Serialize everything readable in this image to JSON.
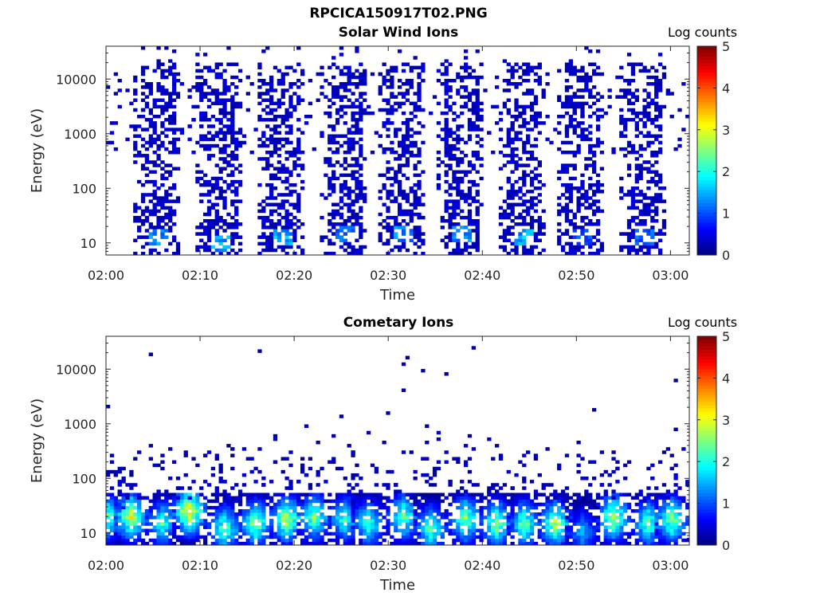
{
  "figure": {
    "filename": "RPCICA150917T02.PNG"
  },
  "chart_data": [
    {
      "type": "heatmap",
      "title": "Solar Wind Ions",
      "xlabel": "Time",
      "ylabel": "Energy (eV)",
      "xlim": [
        "02:00",
        "03:02"
      ],
      "ylim": [
        6,
        40000
      ],
      "yscale": "log",
      "xticks": [
        "02:00",
        "02:10",
        "02:20",
        "02:30",
        "02:40",
        "02:50",
        "03:00"
      ],
      "yticks": [
        "10",
        "100",
        "1000",
        "10000"
      ],
      "colorbar": {
        "label": "Log counts",
        "range": [
          0,
          5
        ],
        "ticks": [
          "0",
          "1",
          "2",
          "3",
          "4",
          "5"
        ],
        "colormap": "jet"
      },
      "background": "#ffffff",
      "bursts": [
        {
          "time_min": 5.7,
          "peak_eV": 12,
          "peak_log_counts": 1.6
        },
        {
          "time_min": 12.2,
          "peak_eV": 10,
          "peak_log_counts": 1.7
        },
        {
          "time_min": 18.8,
          "peak_eV": 12,
          "peak_log_counts": 1.8
        },
        {
          "time_min": 25.3,
          "peak_eV": 15,
          "peak_log_counts": 1.4
        },
        {
          "time_min": 31.7,
          "peak_eV": 15,
          "peak_log_counts": 1.6
        },
        {
          "time_min": 38.0,
          "peak_eV": 15,
          "peak_log_counts": 1.5
        },
        {
          "time_min": 44.5,
          "peak_eV": 12,
          "peak_log_counts": 1.8
        },
        {
          "time_min": 50.8,
          "peak_eV": 12,
          "peak_log_counts": 1.2
        },
        {
          "time_min": 57.3,
          "peak_eV": 12,
          "peak_log_counts": 1.4
        }
      ]
    },
    {
      "type": "heatmap",
      "title": "Cometary Ions",
      "xlabel": "Time",
      "ylabel": "Energy (eV)",
      "xlim": [
        "02:00",
        "03:02"
      ],
      "ylim": [
        6,
        40000
      ],
      "yscale": "log",
      "xticks": [
        "02:00",
        "02:10",
        "02:20",
        "02:30",
        "02:40",
        "02:50",
        "03:00"
      ],
      "yticks": [
        "10",
        "100",
        "1000",
        "10000"
      ],
      "colorbar": {
        "label": "Log counts",
        "range": [
          0,
          5
        ],
        "ticks": [
          "0",
          "1",
          "2",
          "3",
          "4",
          "5"
        ],
        "colormap": "jet"
      },
      "background": "#ffffff",
      "bursts": [
        {
          "time_min": 0.2,
          "peak_eV": 20,
          "peak_log_counts": 2.6
        },
        {
          "time_min": 2.8,
          "peak_eV": 20,
          "peak_log_counts": 3.5
        },
        {
          "time_min": 5.8,
          "peak_eV": 15,
          "peak_log_counts": 2.5
        },
        {
          "time_min": 8.8,
          "peak_eV": 25,
          "peak_log_counts": 3.8
        },
        {
          "time_min": 12.4,
          "peak_eV": 12,
          "peak_log_counts": 2.8
        },
        {
          "time_min": 15.8,
          "peak_eV": 15,
          "peak_log_counts": 3.0
        },
        {
          "time_min": 19.2,
          "peak_eV": 18,
          "peak_log_counts": 3.3
        },
        {
          "time_min": 22.2,
          "peak_eV": 20,
          "peak_log_counts": 2.9
        },
        {
          "time_min": 25.3,
          "peak_eV": 18,
          "peak_log_counts": 2.6
        },
        {
          "time_min": 28.0,
          "peak_eV": 15,
          "peak_log_counts": 2.6
        },
        {
          "time_min": 31.5,
          "peak_eV": 20,
          "peak_log_counts": 2.8
        },
        {
          "time_min": 34.6,
          "peak_eV": 12,
          "peak_log_counts": 2.7
        },
        {
          "time_min": 38.4,
          "peak_eV": 18,
          "peak_log_counts": 2.9
        },
        {
          "time_min": 41.7,
          "peak_eV": 15,
          "peak_log_counts": 3.0
        },
        {
          "time_min": 44.3,
          "peak_eV": 15,
          "peak_log_counts": 2.8
        },
        {
          "time_min": 47.6,
          "peak_eV": 15,
          "peak_log_counts": 3.2
        },
        {
          "time_min": 50.5,
          "peak_eV": 10,
          "peak_log_counts": 1.8
        },
        {
          "time_min": 54.0,
          "peak_eV": 20,
          "peak_log_counts": 3.3
        },
        {
          "time_min": 57.5,
          "peak_eV": 15,
          "peak_log_counts": 2.7
        },
        {
          "time_min": 60.3,
          "peak_eV": 18,
          "peak_log_counts": 3.1
        }
      ]
    }
  ]
}
